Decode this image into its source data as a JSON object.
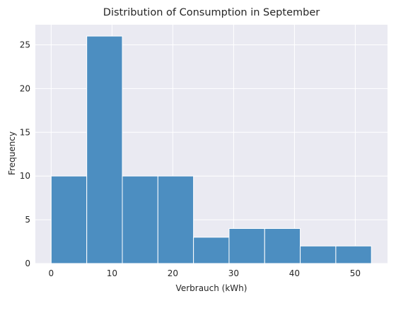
{
  "chart_data": {
    "type": "bar",
    "title": "Distribution of Consumption in September",
    "xlabel": "Verbrauch (kWh)",
    "ylabel": "Frequency",
    "bins": [
      {
        "from": 0.0,
        "to": 5.85,
        "count": 10
      },
      {
        "from": 5.85,
        "to": 11.7,
        "count": 26
      },
      {
        "from": 11.7,
        "to": 17.55,
        "count": 10
      },
      {
        "from": 17.55,
        "to": 23.4,
        "count": 10
      },
      {
        "from": 23.4,
        "to": 29.25,
        "count": 3
      },
      {
        "from": 29.25,
        "to": 35.1,
        "count": 4
      },
      {
        "from": 35.1,
        "to": 40.95,
        "count": 4
      },
      {
        "from": 40.95,
        "to": 46.8,
        "count": 2
      },
      {
        "from": 46.8,
        "to": 52.65,
        "count": 2
      }
    ],
    "xlim": [
      -2.6,
      55.3
    ],
    "ylim": [
      0,
      27.3
    ],
    "xticks": [
      0,
      10,
      20,
      30,
      40,
      50
    ],
    "yticks": [
      0,
      5,
      10,
      15,
      20,
      25
    ],
    "grid": true,
    "colors": {
      "bar": "#4C8EC1",
      "plot_background": "#EAEAF2",
      "grid": "#FFFFFF"
    }
  }
}
